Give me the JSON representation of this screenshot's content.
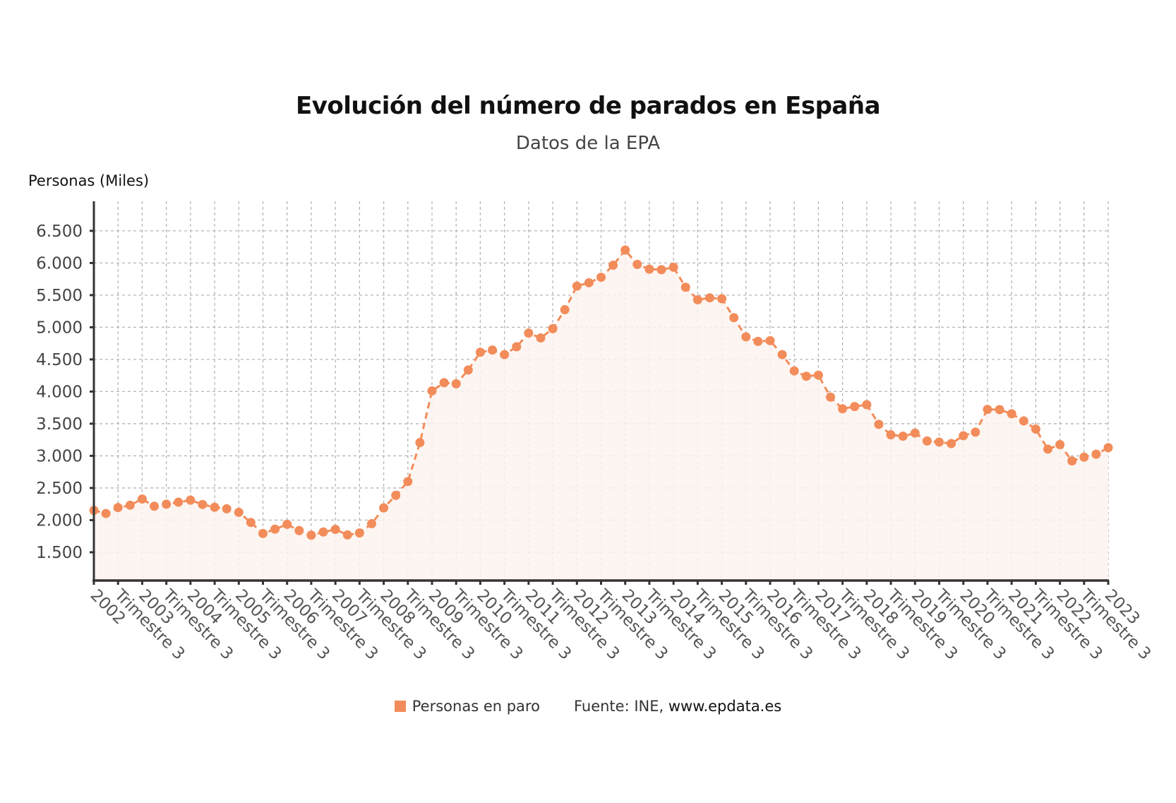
{
  "chart_data": {
    "type": "line",
    "title": "Evolución del número de parados en España",
    "subtitle": "Datos de la EPA",
    "ylabel": "Personas (Miles)",
    "xlabel": "",
    "ylim": [
      1060,
      6960
    ],
    "yticks": [
      1500,
      2000,
      2500,
      3000,
      3500,
      4000,
      4500,
      5000,
      5500,
      6000,
      6500
    ],
    "ytick_labels": [
      "1.500",
      "2.000",
      "2.500",
      "3.000",
      "3.500",
      "4.000",
      "4.500",
      "5.000",
      "5.500",
      "6.000",
      "6.500"
    ],
    "xtick_labels": [
      "2002",
      "Trimestre 3",
      "2003",
      "Trimestre 3",
      "2004",
      "Trimestre 3",
      "2005",
      "Trimestre 3",
      "2006",
      "Trimestre 3",
      "2007",
      "Trimestre 3",
      "2008",
      "Trimestre 3",
      "2009",
      "Trimestre 3",
      "2010",
      "Trimestre 3",
      "2011",
      "Trimestre 3",
      "2012",
      "Trimestre 3",
      "2013",
      "Trimestre 3",
      "2014",
      "Trimestre 3",
      "2015",
      "Trimestre 3",
      "2016",
      "Trimestre 3",
      "2017",
      "Trimestre 3",
      "2018",
      "Trimestre 3",
      "2019",
      "Trimestre 3",
      "2020",
      "Trimestre 3",
      "2021",
      "Trimestre 3",
      "2022",
      "Trimestre 3",
      "2023"
    ],
    "grid": true,
    "legend_position": "bottom-center",
    "series": [
      {
        "name": "Personas en paro",
        "color": "#f28c5a",
        "fill_color": "#fdf3ef",
        "x": [
          "2002 T1",
          "2002 T2",
          "2002 T3",
          "2002 T4",
          "2003 T1",
          "2003 T2",
          "2003 T3",
          "2003 T4",
          "2004 T1",
          "2004 T2",
          "2004 T3",
          "2004 T4",
          "2005 T1",
          "2005 T2",
          "2005 T3",
          "2005 T4",
          "2006 T1",
          "2006 T2",
          "2006 T3",
          "2006 T4",
          "2007 T1",
          "2007 T2",
          "2007 T3",
          "2007 T4",
          "2008 T1",
          "2008 T2",
          "2008 T3",
          "2008 T4",
          "2009 T1",
          "2009 T2",
          "2009 T3",
          "2009 T4",
          "2010 T1",
          "2010 T2",
          "2010 T3",
          "2010 T4",
          "2011 T1",
          "2011 T2",
          "2011 T3",
          "2011 T4",
          "2012 T1",
          "2012 T2",
          "2012 T3",
          "2012 T4",
          "2013 T1",
          "2013 T2",
          "2013 T3",
          "2013 T4",
          "2014 T1",
          "2014 T2",
          "2014 T3",
          "2014 T4",
          "2015 T1",
          "2015 T2",
          "2015 T3",
          "2015 T4",
          "2016 T1",
          "2016 T2",
          "2016 T3",
          "2016 T4",
          "2017 T1",
          "2017 T2",
          "2017 T3",
          "2017 T4",
          "2018 T1",
          "2018 T2",
          "2018 T3",
          "2018 T4",
          "2019 T1",
          "2019 T2",
          "2019 T3",
          "2019 T4",
          "2020 T1",
          "2020 T2",
          "2020 T3",
          "2020 T4",
          "2021 T1",
          "2021 T2",
          "2021 T3",
          "2021 T4",
          "2022 T1",
          "2022 T2",
          "2022 T3",
          "2022 T4",
          "2023 T1"
        ],
        "values": [
          2152,
          2103,
          2196,
          2232,
          2328,
          2216,
          2248,
          2279,
          2311,
          2243,
          2200,
          2176,
          2121,
          1963,
          1792,
          1859,
          1935,
          1837,
          1766,
          1815,
          1856,
          1770,
          1800,
          1944,
          2190,
          2385,
          2600,
          3206,
          4010,
          4138,
          4121,
          4335,
          4612,
          4646,
          4575,
          4697,
          4910,
          4834,
          4978,
          5273,
          5640,
          5693,
          5778,
          5965,
          6202,
          5978,
          5904,
          5896,
          5934,
          5622,
          5428,
          5458,
          5444,
          5149,
          4851,
          4780,
          4792,
          4575,
          4321,
          4238,
          4255,
          3914,
          3732,
          3767,
          3796,
          3490,
          3327,
          3305,
          3354,
          3231,
          3214,
          3191,
          3313,
          3368,
          3722,
          3719,
          3654,
          3543,
          3416,
          3104,
          3175,
          2920,
          2980,
          3025,
          3127
        ]
      }
    ]
  },
  "legend": {
    "series_label": "Personas en paro",
    "source_prefix": "Fuente: INE, ",
    "source_link": "www.epdata.es"
  }
}
